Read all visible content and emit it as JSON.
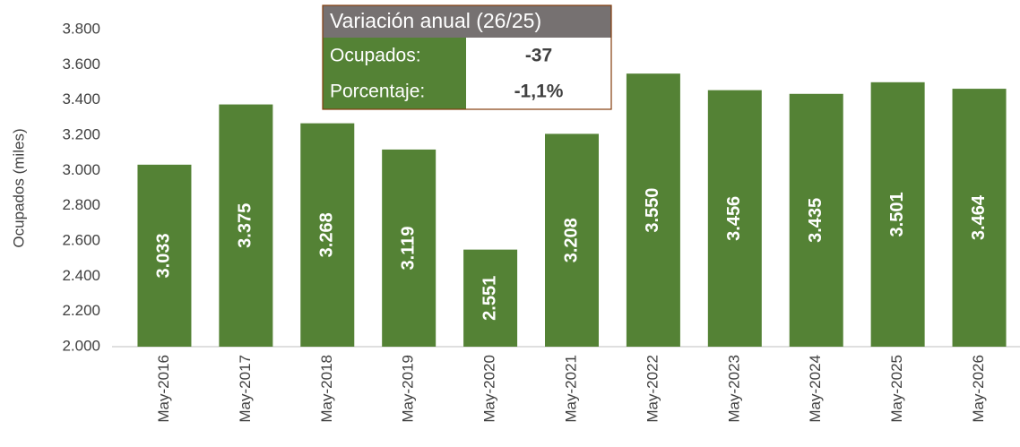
{
  "chart_data": {
    "type": "bar",
    "ylabel": "Ocupados (miles)",
    "categories": [
      "May-2016",
      "May-2017",
      "May-2018",
      "May-2019",
      "May-2020",
      "May-2021",
      "May-2022",
      "May-2023",
      "May-2024",
      "May-2025",
      "May-2026"
    ],
    "values": [
      3033,
      3375,
      3268,
      3119,
      2551,
      3208,
      3550,
      3456,
      3435,
      3501,
      3464
    ],
    "value_labels": [
      "3.033",
      "3.375",
      "3.268",
      "3.119",
      "2.551",
      "3.208",
      "3.550",
      "3.456",
      "3.435",
      "3.501",
      "3.464"
    ],
    "color": "#548235",
    "ylim": [
      2000,
      3800
    ],
    "yticks": [
      {
        "value": 2000,
        "label": "2.000"
      },
      {
        "value": 2200,
        "label": "2.200"
      },
      {
        "value": 2400,
        "label": "2.400"
      },
      {
        "value": 2600,
        "label": "2.600"
      },
      {
        "value": 2800,
        "label": "2.800"
      },
      {
        "value": 3000,
        "label": "3.000"
      },
      {
        "value": 3200,
        "label": "3.200"
      },
      {
        "value": 3400,
        "label": "3.400"
      },
      {
        "value": 3600,
        "label": "3.600"
      },
      {
        "value": 3800,
        "label": "3.800"
      }
    ],
    "grid": false,
    "annotation": {
      "title": "Variación anual (26/25)",
      "rows": [
        [
          "Ocupados:",
          "-37"
        ],
        [
          "Porcentaje:",
          "-1,1%"
        ]
      ]
    }
  }
}
